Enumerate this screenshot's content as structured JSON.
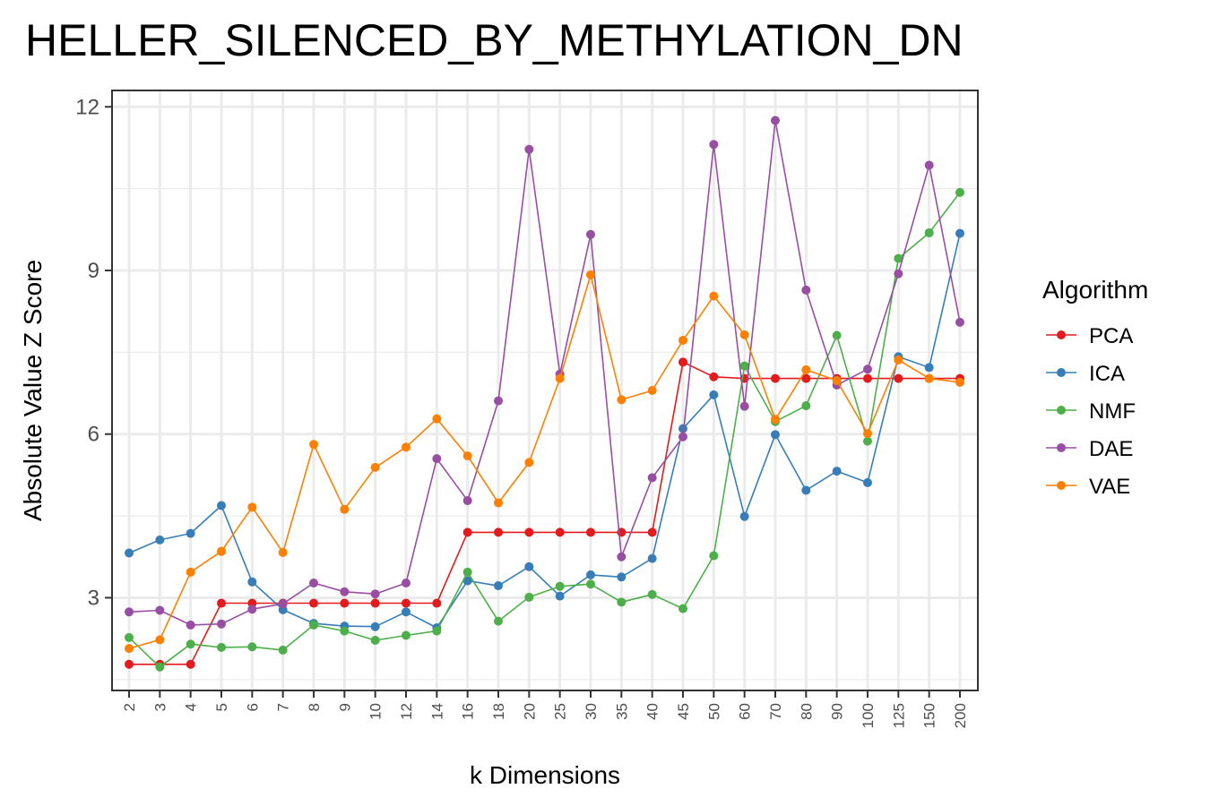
{
  "chart_data": {
    "type": "line",
    "title": "HELLER_SILENCED_BY_METHYLATION_DN",
    "xlabel": "k Dimensions",
    "ylabel": "Absolute Value Z Score",
    "x": [
      "2",
      "3",
      "4",
      "5",
      "6",
      "7",
      "8",
      "9",
      "10",
      "12",
      "14",
      "16",
      "18",
      "20",
      "25",
      "30",
      "35",
      "40",
      "45",
      "50",
      "60",
      "70",
      "80",
      "90",
      "100",
      "125",
      "150",
      "200"
    ],
    "ylim": [
      1.3,
      12.3
    ],
    "yticks": [
      3,
      6,
      9,
      12
    ],
    "grid": true,
    "legend": {
      "title": "Algorithm",
      "placement": "right"
    },
    "series": [
      {
        "name": "PCA",
        "color": "#E41A1C",
        "values": [
          1.78,
          1.78,
          1.78,
          2.9,
          2.9,
          2.9,
          2.9,
          2.9,
          2.9,
          2.9,
          2.9,
          4.2,
          4.2,
          4.2,
          4.2,
          4.2,
          4.2,
          4.2,
          7.32,
          7.05,
          7.02,
          7.02,
          7.02,
          7.02,
          7.02,
          7.02,
          7.02,
          7.02
        ]
      },
      {
        "name": "ICA",
        "color": "#377EB8",
        "values": [
          3.82,
          4.06,
          4.18,
          4.69,
          3.29,
          2.78,
          2.53,
          2.48,
          2.47,
          2.74,
          2.45,
          3.31,
          3.22,
          3.57,
          3.03,
          3.42,
          3.38,
          3.72,
          6.1,
          6.72,
          4.49,
          5.99,
          4.97,
          5.32,
          5.11,
          7.42,
          7.22,
          9.68
        ]
      },
      {
        "name": "NMF",
        "color": "#4DAF4A",
        "values": [
          2.27,
          1.73,
          2.15,
          2.09,
          2.1,
          2.04,
          2.5,
          2.39,
          2.22,
          2.31,
          2.39,
          3.47,
          2.57,
          3.01,
          3.21,
          3.25,
          2.92,
          3.06,
          2.8,
          3.77,
          7.25,
          6.23,
          6.52,
          7.81,
          5.87,
          9.22,
          9.69,
          10.43
        ]
      },
      {
        "name": "DAE",
        "color": "#984EA3",
        "values": [
          2.74,
          2.77,
          2.5,
          2.52,
          2.79,
          2.89,
          3.27,
          3.11,
          3.07,
          3.27,
          5.55,
          4.78,
          6.61,
          11.22,
          7.1,
          9.66,
          3.75,
          5.2,
          5.95,
          11.31,
          6.51,
          11.75,
          8.64,
          6.9,
          7.19,
          8.94,
          10.93,
          8.05
        ]
      },
      {
        "name": "VAE",
        "color": "#FF7F00",
        "values": [
          2.07,
          2.23,
          3.47,
          3.85,
          4.66,
          3.83,
          5.81,
          4.62,
          5.39,
          5.76,
          6.28,
          5.6,
          4.74,
          5.48,
          7.02,
          8.92,
          6.63,
          6.8,
          7.72,
          8.53,
          7.82,
          6.27,
          7.18,
          6.98,
          6.01,
          7.36,
          7.02,
          6.95
        ]
      }
    ]
  }
}
